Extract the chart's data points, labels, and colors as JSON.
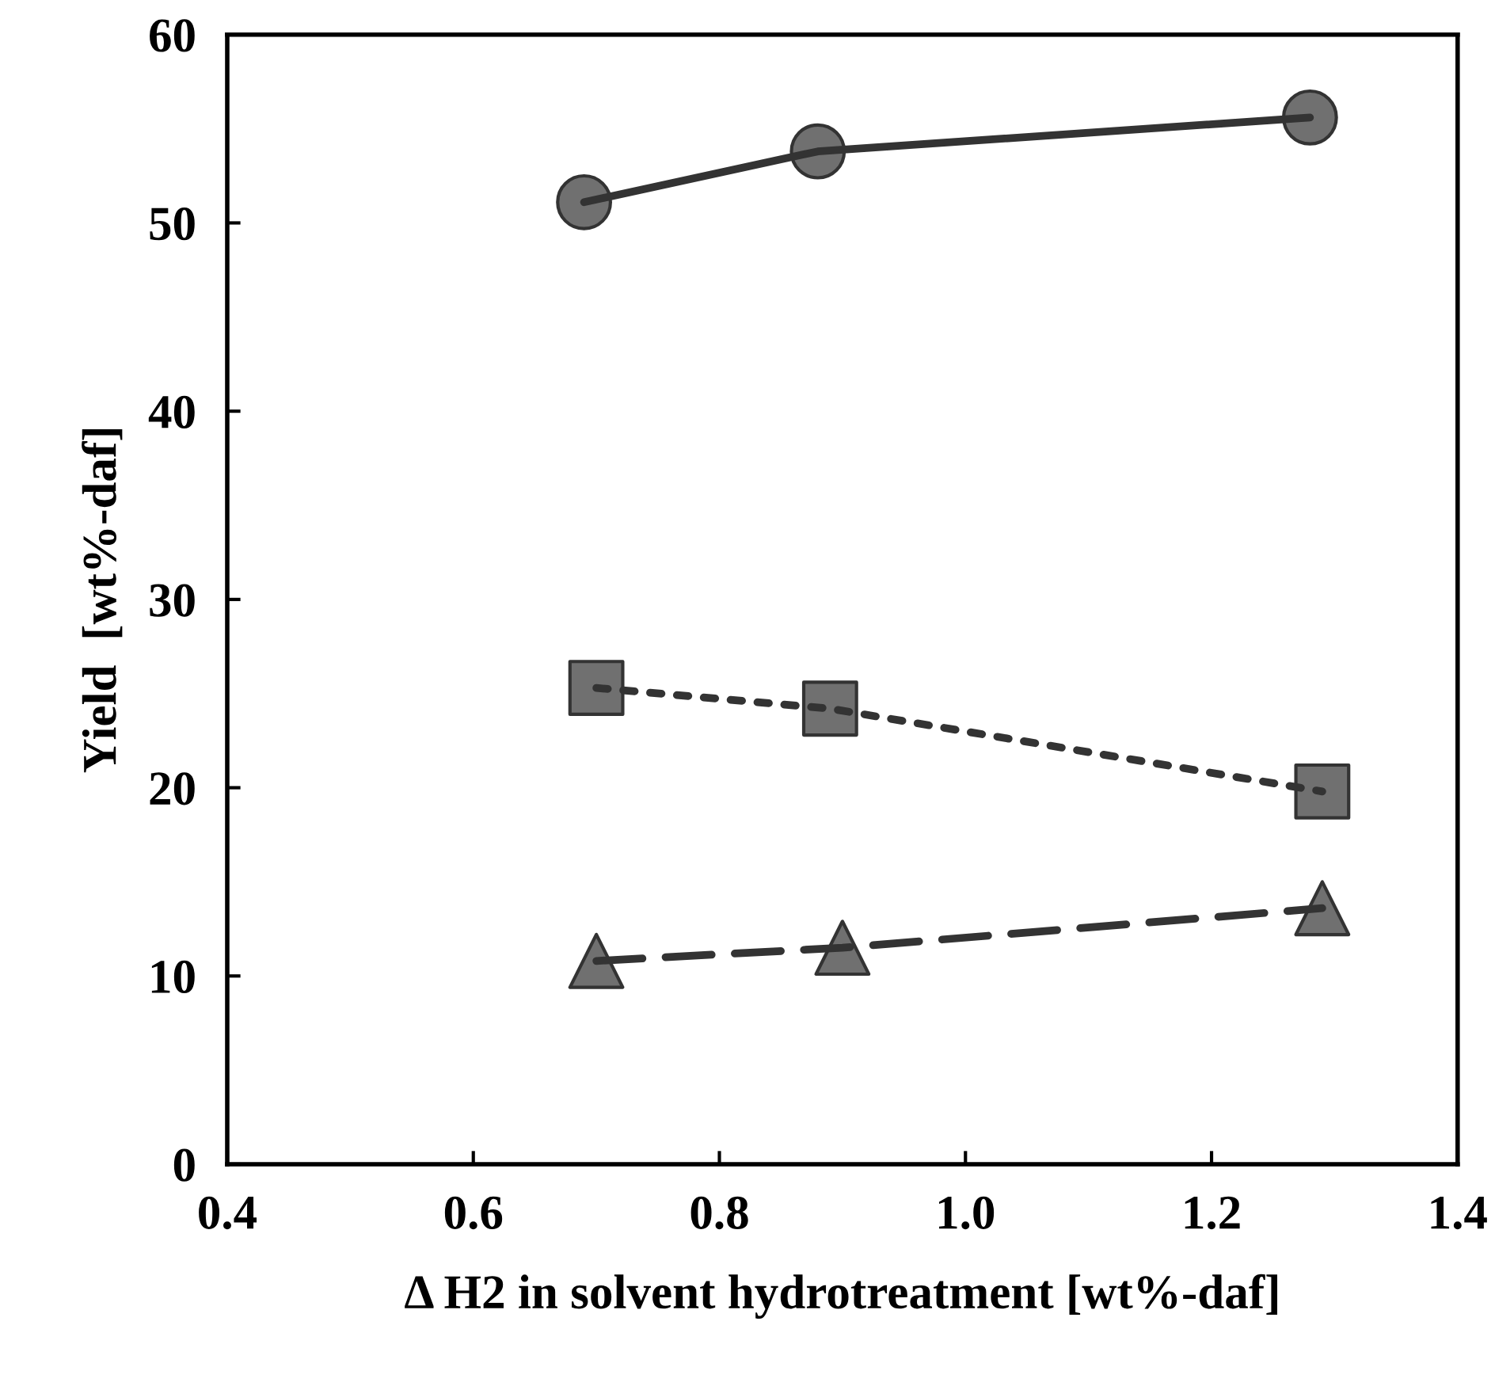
{
  "chart_data": {
    "type": "line",
    "xlabel": "Δ H2 in solvent hydrotreatment [wt%-daf]",
    "ylabel": "Yield  [wt%-daf]",
    "series": [
      {
        "x": [
          0.69,
          0.88,
          1.28
        ],
        "values": [
          51.1,
          53.8,
          55.6
        ],
        "color": "#333333",
        "colors": [
          "#707070",
          "#707070",
          "#707070"
        ],
        "marker": "circle",
        "line_style": "solid"
      },
      {
        "x": [
          0.7,
          0.89,
          1.29
        ],
        "values": [
          25.3,
          24.2,
          19.8
        ],
        "color": "#333333",
        "colors": [
          "#707070",
          "#707070",
          "#707070"
        ],
        "marker": "square",
        "line_style": "dotted"
      },
      {
        "x": [
          0.7,
          0.9,
          1.29
        ],
        "values": [
          10.8,
          11.5,
          13.6
        ],
        "color": "#333333",
        "colors": [
          "#707070",
          "#707070",
          "#707070"
        ],
        "marker": "triangle",
        "line_style": "dashed"
      }
    ],
    "xlim": [
      0.4,
      1.4
    ],
    "xticks": [
      {
        "value": 0.4,
        "label": "0.4"
      },
      {
        "value": 0.6,
        "label": "0.6"
      },
      {
        "value": 0.8,
        "label": "0.8"
      },
      {
        "value": 1.0,
        "label": "1.0"
      },
      {
        "value": 1.2,
        "label": "1.2"
      },
      {
        "value": 1.4,
        "label": "1.4"
      }
    ],
    "ylim": [
      0,
      60
    ],
    "yticks": [
      0,
      10,
      20,
      30,
      40,
      50,
      60
    ],
    "grid": false,
    "legend": false
  }
}
